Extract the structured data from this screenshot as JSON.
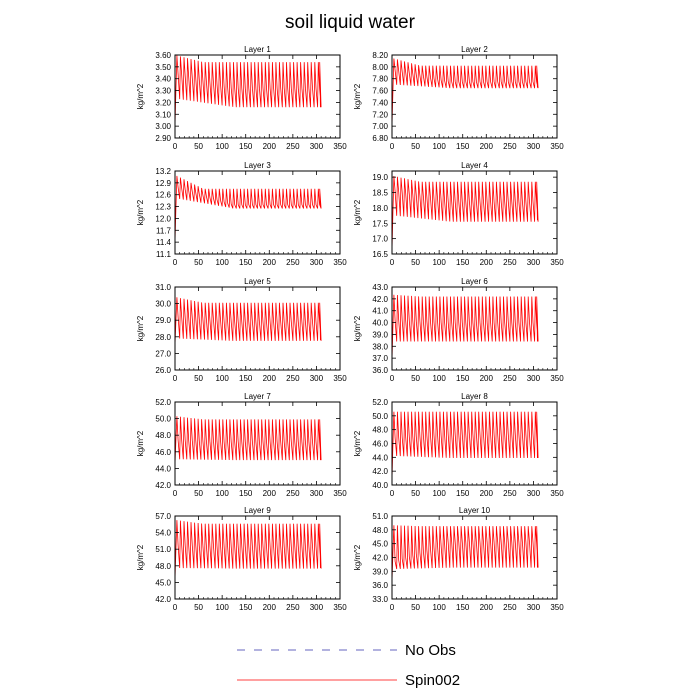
{
  "chart_data": {
    "type": "line",
    "title": "soil liquid water",
    "ylabel": "kg/m^2",
    "xlim": [
      0,
      350
    ],
    "xticks": [
      0,
      50,
      100,
      150,
      200,
      250,
      300,
      350
    ],
    "legend": {
      "placement": "bottom-center",
      "entries": [
        {
          "name": "No Obs",
          "color": "#3333aa",
          "style": "dashed"
        },
        {
          "name": "Spin002",
          "color": "#ff0000",
          "style": "solid"
        }
      ]
    },
    "panels": [
      {
        "title": "Layer 1",
        "ylim": [
          2.9,
          3.6
        ],
        "yticks": [
          "2.90",
          "3.00",
          "3.10",
          "3.20",
          "3.30",
          "3.40",
          "3.50",
          "3.60"
        ],
        "series": [
          {
            "name": "Spin002",
            "color": "#ff0000",
            "start": 3.0,
            "peak": 3.6,
            "upper": 3.54,
            "lower": 3.16,
            "trough0": 3.23,
            "mean": 3.32,
            "mean0": 3.44,
            "end": 3.16,
            "xmax": 307
          }
        ]
      },
      {
        "title": "Layer 2",
        "ylim": [
          6.8,
          8.2
        ],
        "yticks": [
          "6.80",
          "7.00",
          "7.20",
          "7.40",
          "7.60",
          "7.80",
          "8.00",
          "8.20"
        ],
        "series": [
          {
            "name": "Spin002",
            "color": "#ff0000",
            "start": 7.0,
            "peak": 8.15,
            "upper": 8.02,
            "lower": 7.64,
            "trough0": 7.7,
            "mean": 7.75,
            "mean0": 7.95,
            "end": 7.65,
            "xmax": 307
          }
        ]
      },
      {
        "title": "Layer 3",
        "ylim": [
          11.1,
          13.2
        ],
        "yticks": [
          "11.1",
          "11.4",
          "11.7",
          "12.0",
          "12.3",
          "12.6",
          "12.9",
          "13.2"
        ],
        "series": [
          {
            "name": "Spin002",
            "color": "#ff0000",
            "start": 11.4,
            "peak": 13.1,
            "upper": 12.75,
            "lower": 12.25,
            "trough0": 12.5,
            "mean": 12.35,
            "mean0": 12.8,
            "end": 12.3,
            "xmax": 307
          }
        ]
      },
      {
        "title": "Layer 4",
        "ylim": [
          16.5,
          19.2
        ],
        "yticks": [
          "16.5",
          "17.0",
          "17.5",
          "18.0",
          "18.5",
          "19.0"
        ],
        "series": [
          {
            "name": "Spin002",
            "color": "#ff0000",
            "start": 16.6,
            "peak": 19.05,
            "upper": 18.85,
            "lower": 17.55,
            "trough0": 17.75,
            "mean": 18.2,
            "mean0": 18.55,
            "end": 17.6,
            "xmax": 307
          }
        ]
      },
      {
        "title": "Layer 5",
        "ylim": [
          26.0,
          31.0
        ],
        "yticks": [
          "26.0",
          "27.0",
          "28.0",
          "29.0",
          "30.0",
          "31.0"
        ],
        "series": [
          {
            "name": "Spin002",
            "color": "#ff0000",
            "start": 27.5,
            "peak": 30.4,
            "upper": 30.05,
            "lower": 27.75,
            "trough0": 27.9,
            "mean": 28.9,
            "mean0": 29.2,
            "end": 27.8,
            "xmax": 307
          }
        ]
      },
      {
        "title": "Layer 6",
        "ylim": [
          36.0,
          43.0
        ],
        "yticks": [
          "36.0",
          "37.0",
          "38.0",
          "39.0",
          "40.0",
          "41.0",
          "42.0",
          "43.0"
        ],
        "series": [
          {
            "name": "Spin002",
            "color": "#ff0000",
            "start": 36.8,
            "peak": 42.35,
            "upper": 42.2,
            "lower": 38.4,
            "trough0": 38.4,
            "mean": 40.0,
            "mean0": 40.2,
            "end": 38.4,
            "xmax": 307
          }
        ]
      },
      {
        "title": "Layer 7",
        "ylim": [
          42.0,
          52.0
        ],
        "yticks": [
          "42.0",
          "44.0",
          "46.0",
          "48.0",
          "50.0",
          "52.0"
        ],
        "series": [
          {
            "name": "Spin002",
            "color": "#ff0000",
            "start": 44.5,
            "peak": 50.3,
            "upper": 49.9,
            "lower": 45.0,
            "trough0": 45.1,
            "mean": 47.2,
            "mean0": 47.4,
            "end": 45.0,
            "xmax": 307
          }
        ]
      },
      {
        "title": "Layer 8",
        "ylim": [
          40.0,
          52.0
        ],
        "yticks": [
          "40.0",
          "42.0",
          "44.0",
          "46.0",
          "48.0",
          "50.0",
          "52.0"
        ],
        "series": [
          {
            "name": "Spin002",
            "color": "#ff0000",
            "start": 40.8,
            "peak": 50.6,
            "upper": 50.6,
            "lower": 43.9,
            "trough0": 44.2,
            "mean": 47.3,
            "mean0": 46.8,
            "end": 43.9,
            "xmax": 307
          }
        ]
      },
      {
        "title": "Layer 9",
        "ylim": [
          42.0,
          57.0
        ],
        "yticks": [
          "42.0",
          "45.0",
          "48.0",
          "51.0",
          "54.0",
          "57.0"
        ],
        "series": [
          {
            "name": "Spin002",
            "color": "#ff0000",
            "start": 45.5,
            "peak": 56.3,
            "upper": 55.6,
            "lower": 47.5,
            "trough0": 47.6,
            "mean": 51.5,
            "mean0": 51.7,
            "end": 47.6,
            "xmax": 307
          }
        ]
      },
      {
        "title": "Layer 10",
        "ylim": [
          33.0,
          51.0
        ],
        "yticks": [
          "33.0",
          "36.0",
          "39.0",
          "42.0",
          "45.0",
          "48.0",
          "51.0"
        ],
        "series": [
          {
            "name": "Spin002",
            "color": "#ff0000",
            "start": 36.8,
            "peak": 49.0,
            "upper": 48.8,
            "lower": 39.8,
            "trough0": 39.5,
            "mean": 45.3,
            "mean0": 41.0,
            "end": 39.8,
            "xmax": 307
          }
        ]
      }
    ]
  }
}
